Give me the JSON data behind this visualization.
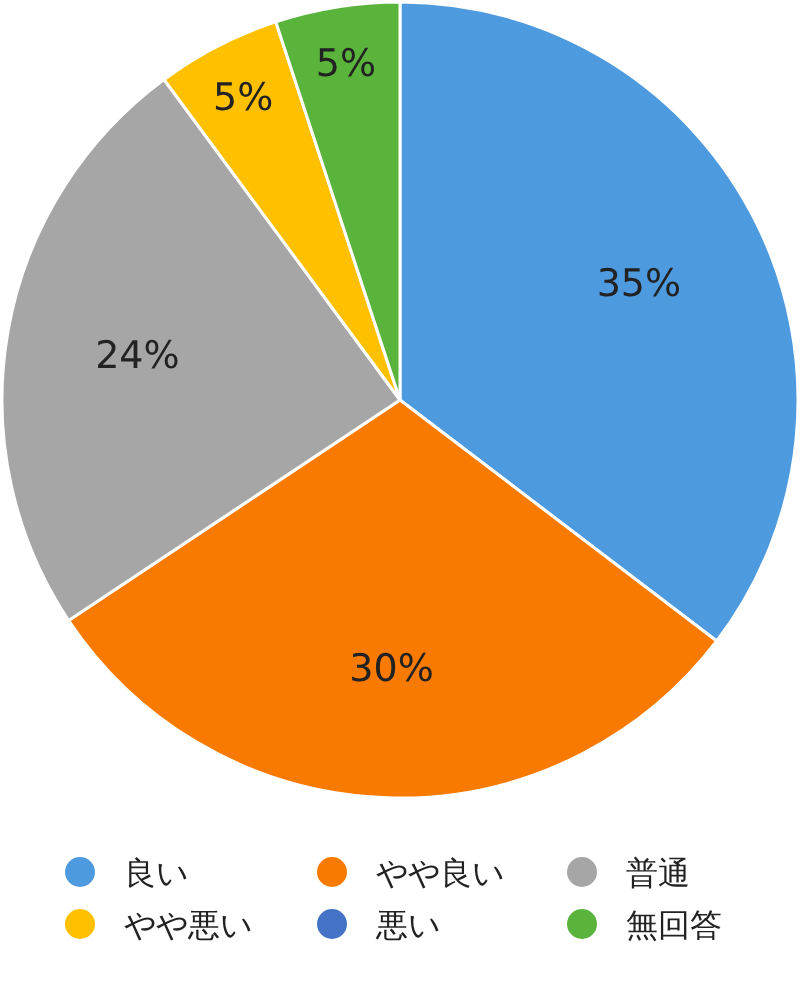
{
  "chart_data": {
    "type": "pie",
    "categories": [
      "良い",
      "やや良い",
      "普通",
      "やや悪い",
      "悪い",
      "無回答"
    ],
    "values": [
      35,
      30,
      24,
      5,
      0,
      5
    ],
    "colors": [
      "#4e9adf",
      "#f97a00",
      "#a6a6a6",
      "#ffc000",
      "#4472c4",
      "#5ab43c"
    ],
    "value_labels": [
      "35%",
      "30%",
      "24%",
      "5%",
      null,
      "5%"
    ],
    "legend": "bottom"
  }
}
